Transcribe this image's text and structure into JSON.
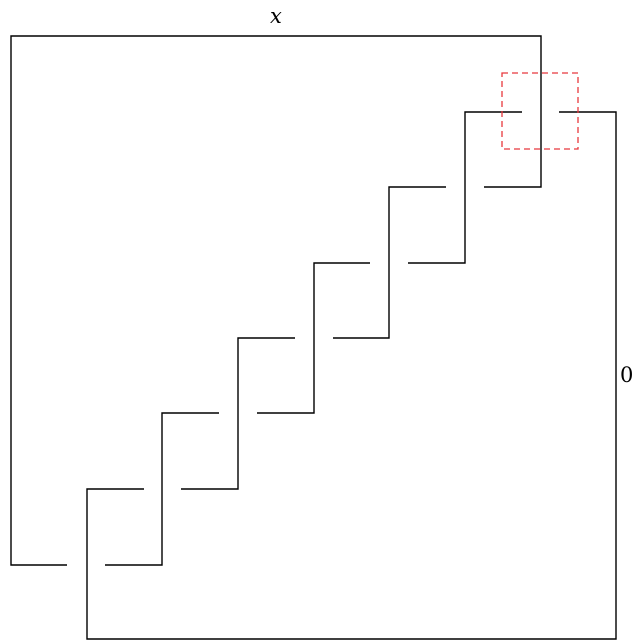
{
  "diagram": {
    "top_label": "x",
    "right_label": "0",
    "colors": {
      "line": "#000000",
      "highlight": "#e8383d"
    }
  }
}
